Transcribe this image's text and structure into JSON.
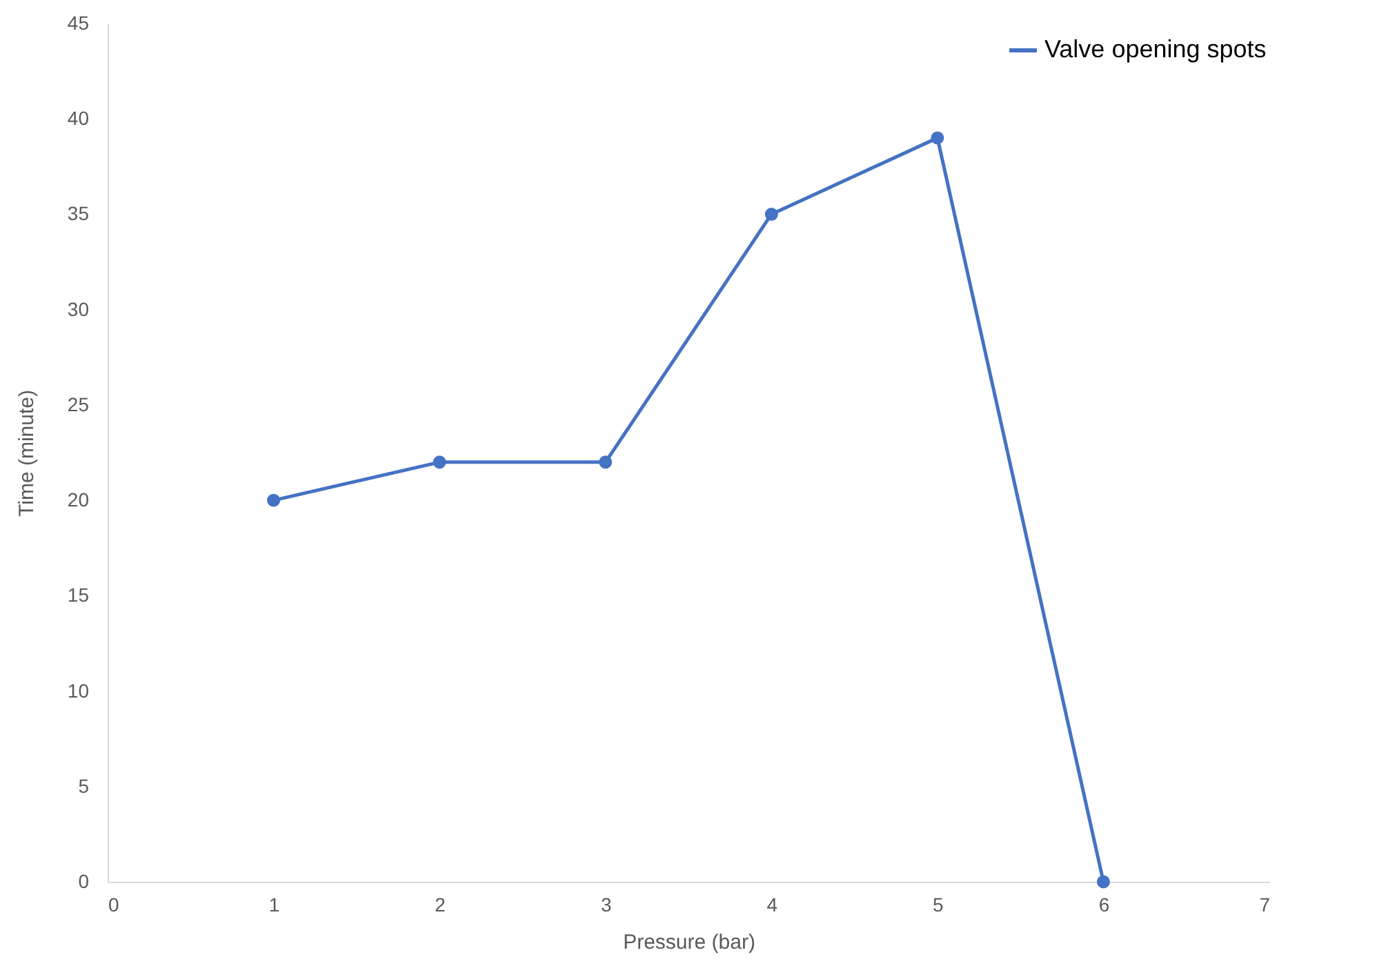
{
  "chart_data": {
    "type": "line",
    "xlabel": "Pressure (bar)",
    "ylabel": "Time (minute)",
    "x": [
      1,
      2,
      3,
      4,
      5,
      6
    ],
    "series": [
      {
        "name": "Valve opening spots",
        "color": "#4472c4",
        "values": [
          20,
          22,
          22,
          35,
          39,
          0
        ]
      }
    ],
    "xlim": [
      0,
      7
    ],
    "xticks": [
      0,
      1,
      2,
      3,
      4,
      5,
      6,
      7
    ],
    "ylim": [
      0,
      45
    ],
    "yticks": [
      0,
      5,
      10,
      15,
      20,
      25,
      30,
      35,
      40,
      45
    ],
    "grid": false,
    "legend": "top right",
    "marker": "circle",
    "line_style": "solid"
  }
}
